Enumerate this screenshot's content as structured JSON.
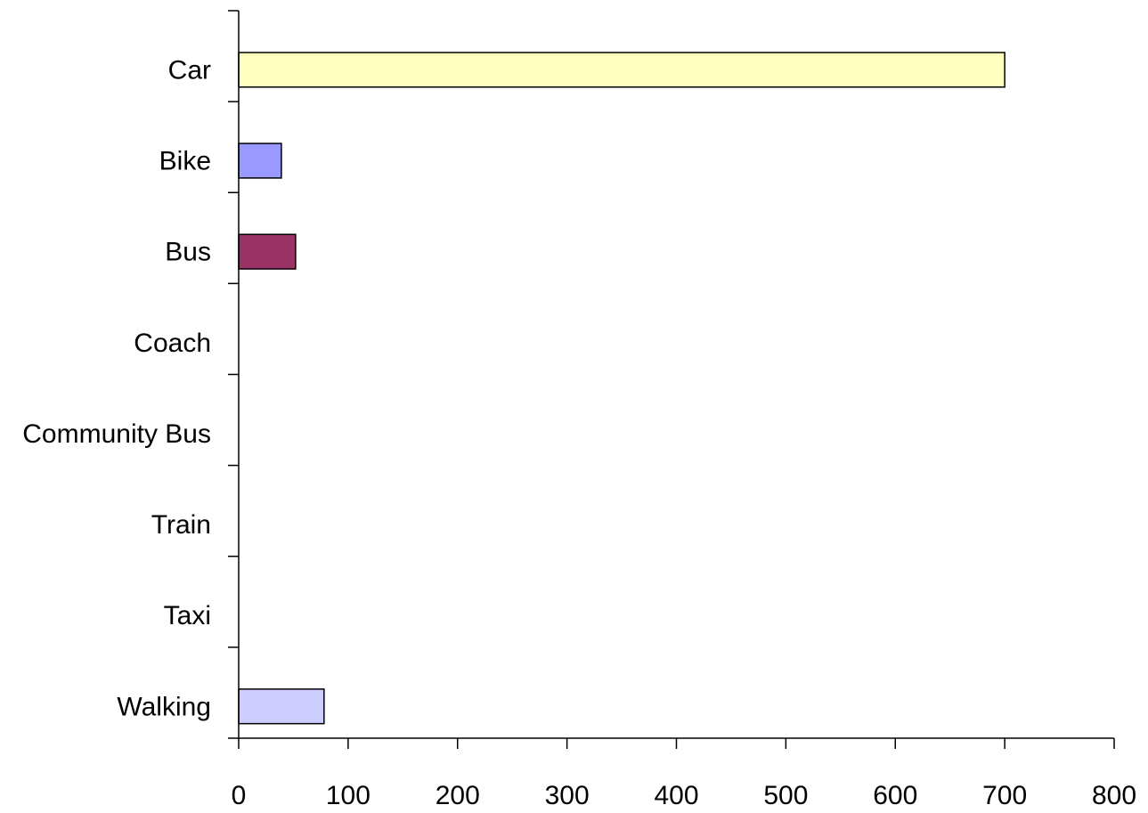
{
  "chart_data": {
    "type": "bar",
    "orientation": "horizontal",
    "title": "",
    "xlabel": "",
    "ylabel": "",
    "categories": [
      "Car",
      "Bike",
      "Bus",
      "Coach",
      "Community Bus",
      "Train",
      "Taxi",
      "Walking"
    ],
    "values": [
      700,
      39,
      52,
      0,
      0,
      0,
      0,
      78
    ],
    "colors": [
      "#FFFFC0",
      "#9999FF",
      "#993366",
      "#CCCCFF",
      "#CCCCFF",
      "#CCCCFF",
      "#CCCCFF",
      "#CCCCFF"
    ],
    "xlim": [
      0,
      800
    ],
    "xticks": [
      "0",
      "100",
      "200",
      "300",
      "400",
      "500",
      "600",
      "700",
      "800"
    ],
    "grid": false,
    "legend": "none"
  }
}
